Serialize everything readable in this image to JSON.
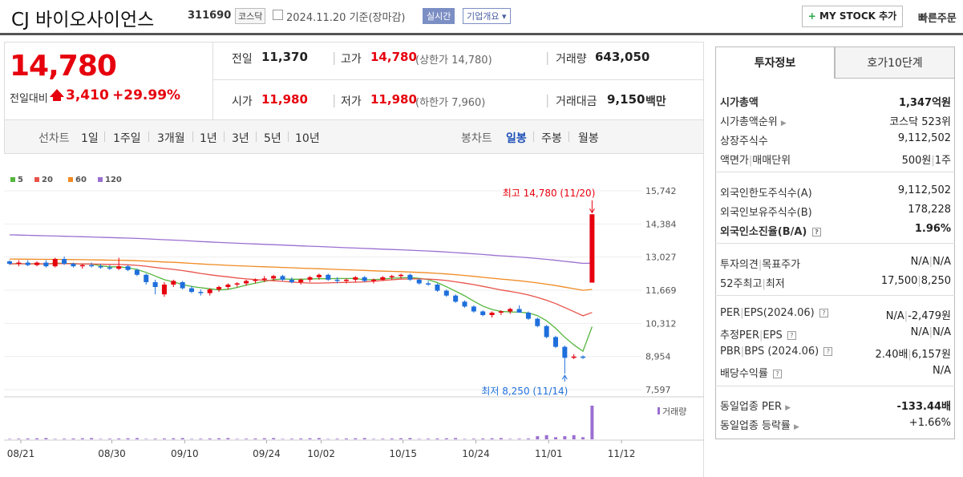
{
  "header": {
    "company": "CJ 바이오사이언스",
    "code": "311690",
    "market": "코스닥",
    "date": "2024.11.20 기준(장마감)",
    "realtime": "실시간",
    "overview": "기업개요 ▾",
    "mystock_plus": "+",
    "mystock": "MY STOCK 추가",
    "quick_order": "빠른주문"
  },
  "price": {
    "current": "14,780",
    "change_label": "전일대비",
    "change_value": "3,410",
    "change_pct": "+29.99%",
    "prev_close_label": "전일",
    "prev_close": "11,370",
    "high_label": "고가",
    "high": "14,780",
    "high_limit": "(상한가 14,780)",
    "volume_label": "거래량",
    "volume": "643,050",
    "open_label": "시가",
    "open": "11,980",
    "low_label": "저가",
    "low": "11,980",
    "low_limit": "(하한가 7,960)",
    "value_label": "거래대금",
    "value": "9,150",
    "value_unit": "백만"
  },
  "tabs": {
    "line_label": "선차트",
    "line": [
      "1일",
      "1주일",
      "3개월",
      "1년",
      "3년",
      "5년",
      "10년"
    ],
    "candle_label": "봉차트",
    "candle": [
      "일봉",
      "주봉",
      "월봉"
    ]
  },
  "chart_data": {
    "type": "candlestick",
    "legend": [
      "5",
      "20",
      "60",
      "120"
    ],
    "ma_colors": [
      "#53b63d",
      "#e9524a",
      "#f08a22",
      "#9b6fd1"
    ],
    "y_ticks": [
      "15,742",
      "14,384",
      "13,027",
      "11,669",
      "10,312",
      "8,954",
      "7,597"
    ],
    "ylim": [
      7597,
      15742
    ],
    "x_ticks": [
      "08/21",
      "08/30",
      "09/10",
      "09/24",
      "10/02",
      "10/15",
      "10/24",
      "11/01",
      "11/12"
    ],
    "high_annotation": "최고 14,780 (11/20)",
    "low_annotation": "최저 8,250 (11/14)",
    "volume_label": "거래량",
    "up_color": "#e6000d",
    "down_color": "#1e6fdc",
    "candles": [
      [
        12850,
        12900,
        12700,
        12750
      ],
      [
        12750,
        12900,
        12650,
        12800
      ],
      [
        12800,
        12900,
        12650,
        12700
      ],
      [
        12700,
        12850,
        12650,
        12800
      ],
      [
        12800,
        12900,
        12600,
        12650
      ],
      [
        12650,
        13000,
        12600,
        12950
      ],
      [
        12950,
        13050,
        12700,
        12750
      ],
      [
        12750,
        12800,
        12600,
        12650
      ],
      [
        12650,
        12750,
        12550,
        12700
      ],
      [
        12700,
        12800,
        12600,
        12650
      ],
      [
        12650,
        12750,
        12550,
        12600
      ],
      [
        12600,
        12700,
        12500,
        12550
      ],
      [
        12550,
        13000,
        12500,
        12650
      ],
      [
        12650,
        12700,
        12450,
        12500
      ],
      [
        12500,
        12550,
        12250,
        12300
      ],
      [
        12300,
        12350,
        11900,
        12000
      ],
      [
        12000,
        12100,
        11500,
        11800
      ],
      [
        11500,
        12000,
        11400,
        11900
      ],
      [
        11900,
        12100,
        11800,
        12050
      ],
      [
        12000,
        12050,
        11700,
        11750
      ],
      [
        11750,
        11850,
        11550,
        11600
      ],
      [
        11600,
        11700,
        11450,
        11550
      ],
      [
        11550,
        11750,
        11450,
        11700
      ],
      [
        11700,
        11850,
        11600,
        11800
      ],
      [
        11800,
        11950,
        11700,
        11900
      ],
      [
        11900,
        12000,
        11800,
        11950
      ],
      [
        11950,
        12100,
        11850,
        12050
      ],
      [
        12050,
        12150,
        11950,
        12100
      ],
      [
        12100,
        12250,
        12000,
        12150
      ],
      [
        12150,
        12300,
        12050,
        12250
      ],
      [
        12250,
        12300,
        12050,
        12100
      ],
      [
        12100,
        12200,
        11950,
        12000
      ],
      [
        12000,
        12150,
        11900,
        12100
      ],
      [
        12100,
        12250,
        12000,
        12200
      ],
      [
        12200,
        12350,
        12100,
        12300
      ],
      [
        12300,
        12350,
        12050,
        12100
      ],
      [
        12100,
        12200,
        11950,
        12050
      ],
      [
        12050,
        12150,
        11950,
        12100
      ],
      [
        12100,
        12250,
        12000,
        12200
      ],
      [
        12200,
        12250,
        12000,
        12050
      ],
      [
        12050,
        12150,
        11950,
        12100
      ],
      [
        12100,
        12250,
        12050,
        12200
      ],
      [
        12200,
        12300,
        12100,
        12250
      ],
      [
        12250,
        12350,
        12150,
        12300
      ],
      [
        12300,
        12350,
        12050,
        12100
      ],
      [
        12100,
        12150,
        11900,
        11950
      ],
      [
        11950,
        12050,
        11850,
        11900
      ],
      [
        11900,
        11950,
        11600,
        11650
      ],
      [
        11650,
        11700,
        11400,
        11450
      ],
      [
        11450,
        11500,
        11150,
        11200
      ],
      [
        11200,
        11250,
        10950,
        11000
      ],
      [
        11000,
        11050,
        10750,
        10800
      ],
      [
        10800,
        10850,
        10600,
        10650
      ],
      [
        10650,
        10800,
        10550,
        10750
      ],
      [
        10750,
        10850,
        10650,
        10800
      ],
      [
        10800,
        10950,
        10700,
        10900
      ],
      [
        10900,
        11050,
        10800,
        10750
      ],
      [
        10750,
        10800,
        10450,
        10500
      ],
      [
        10500,
        10550,
        10150,
        10200
      ],
      [
        10200,
        10250,
        9700,
        9750
      ],
      [
        9750,
        9800,
        9300,
        9350
      ],
      [
        9350,
        9400,
        8250,
        8900
      ],
      [
        8900,
        9050,
        8850,
        8950
      ],
      [
        8950,
        9000,
        8850,
        8900
      ],
      [
        11980,
        14780,
        11980,
        14780
      ]
    ]
  },
  "info": {
    "tab_active": "투자정보",
    "tab_other": "호가10단계",
    "rows": [
      {
        "label": "시가총액",
        "value": "1,347억원"
      },
      {
        "label": "시가총액순위",
        "value": "코스닥 523위"
      },
      {
        "label": "상장주식수",
        "value": "9,112,502"
      },
      {
        "label": "액면가",
        "label2": "매매단위",
        "value": "500원",
        "value2": "1주"
      },
      {
        "label": "외국인한도주식수(A)",
        "value": "9,112,502"
      },
      {
        "label": "외국인보유주식수(B)",
        "value": "178,228"
      },
      {
        "label": "외국인소진율(B/A)",
        "value": "1.96%"
      },
      {
        "label": "투자의견",
        "label2": "목표주가",
        "value": "N/A",
        "value2": "N/A"
      },
      {
        "label": "52주최고",
        "label2": "최저",
        "value": "17,500",
        "value2": "8,250"
      },
      {
        "label": "PER",
        "label2": "EPS(2024.06)",
        "value": "N/A",
        "value2": "-2,479원"
      },
      {
        "label": "추정PER",
        "label2": "EPS",
        "value": "N/A",
        "value2": "N/A"
      },
      {
        "label": "PBR",
        "label2": "BPS (2024.06)",
        "value": "2.40배",
        "value2": "6,157원"
      },
      {
        "label": "배당수익률",
        "value": "N/A"
      },
      {
        "label": "동일업종 PER",
        "value": "-133.44배"
      },
      {
        "label": "동일업종 등락률",
        "value": "+1.66%"
      }
    ]
  }
}
